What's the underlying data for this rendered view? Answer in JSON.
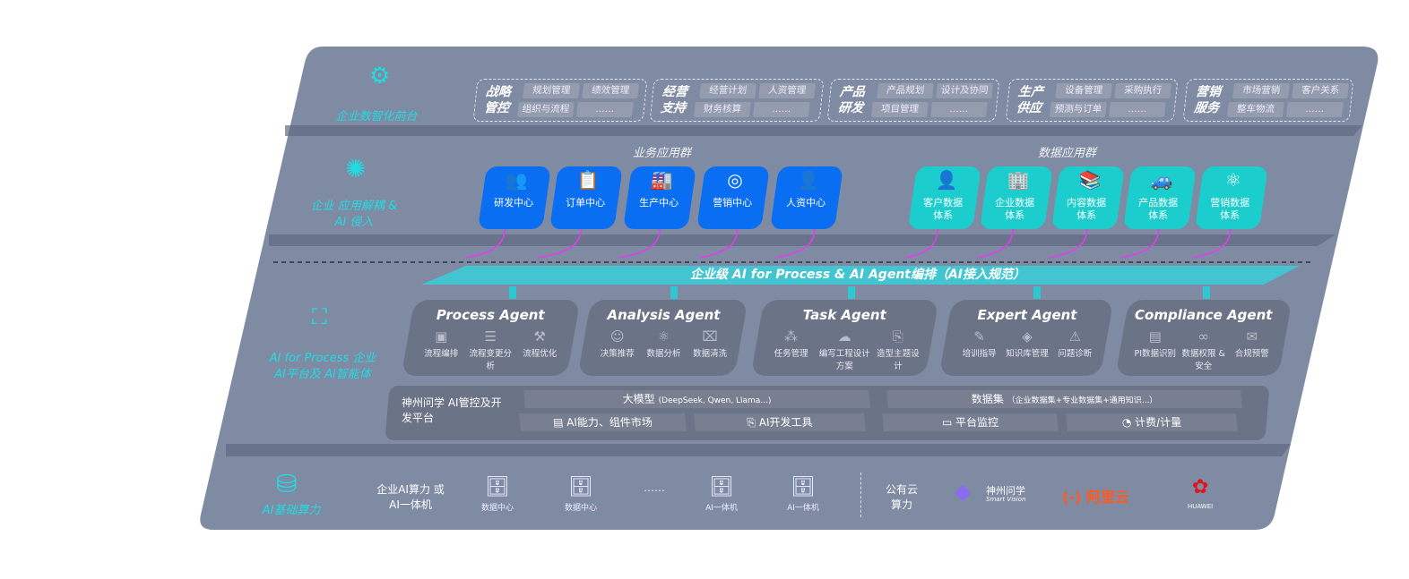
{
  "layers": {
    "frontend": {
      "label": "企业数智化前台",
      "groups": [
        {
          "title": "战略管控",
          "items": [
            "规划管理",
            "绩效管理",
            "组织与流程",
            "……"
          ]
        },
        {
          "title": "经营支持",
          "items": [
            "经营计划",
            "人资管理",
            "财务核算",
            "……"
          ]
        },
        {
          "title": "产品研发",
          "items": [
            "产品规划",
            "设计及协同",
            "项目管理",
            "……"
          ]
        },
        {
          "title": "生产供应",
          "items": [
            "设备管理",
            "采购执行",
            "预测与订单",
            "……"
          ]
        },
        {
          "title": "营销服务",
          "items": [
            "市场营销",
            "客户关系",
            "整车物流",
            "……"
          ]
        }
      ]
    },
    "apps": {
      "label": "企业 应用解耦 & AI 侵入",
      "business_title": "业务应用群",
      "data_title": "数据应用群",
      "business": [
        {
          "label": "研发中心",
          "icon": "people-icon"
        },
        {
          "label": "订单中心",
          "icon": "clipboard-icon"
        },
        {
          "label": "生产中心",
          "icon": "factory-icon"
        },
        {
          "label": "营销中心",
          "icon": "target-icon"
        },
        {
          "label": "人资中心",
          "icon": "person-icon"
        }
      ],
      "data": [
        {
          "label": "客户数据体系",
          "icon": "user-icon"
        },
        {
          "label": "企业数据体系",
          "icon": "building-icon"
        },
        {
          "label": "内容数据体系",
          "icon": "books-icon"
        },
        {
          "label": "产品数据体系",
          "icon": "car-icon"
        },
        {
          "label": "营销数据体系",
          "icon": "atom-icon"
        }
      ]
    },
    "ai": {
      "label": "AI for Process 企业AI平台及 AI智能体",
      "banner": "企业级 AI for Process & AI Agent编排（AI接入规范）",
      "agents": [
        {
          "title": "Process Agent",
          "items": [
            "流程编排",
            "流程变更分析",
            "流程优化"
          ]
        },
        {
          "title": "Analysis Agent",
          "items": [
            "决策推荐",
            "数据分析",
            "数据清洗"
          ]
        },
        {
          "title": "Task Agent",
          "items": [
            "任务管理",
            "编写工程设计方案",
            "造型主题设计"
          ]
        },
        {
          "title": "Expert Agent",
          "items": [
            "培训指导",
            "知识库管理",
            "问题诊断"
          ]
        },
        {
          "title": "Compliance Agent",
          "items": [
            "PI数据识别",
            "数据权限 & 安全",
            "合规预警"
          ]
        }
      ],
      "platform": {
        "name": "神州问学 AI管控及开发平台",
        "model": "大模型",
        "model_note": "(DeepSeek, Qwen, Llama...)",
        "dataset": "数据集",
        "dataset_note": "（企业数据集+专业数据集+通用知识...）",
        "tools": [
          "AI能力、组件市场",
          "AI开发工具",
          "平台监控",
          "计费/计量"
        ]
      }
    },
    "infra": {
      "label": "AI基础算力",
      "enterprise": "企业AI算力 或AI一体机",
      "nodes": [
        "数据中心",
        "数据中心",
        "……",
        "AI一体机",
        "AI一体机"
      ],
      "public": "公有云 算力",
      "vendors": {
        "shenzhou": "神州问学",
        "shenzhou_sub": "Smart Vision",
        "aliyun": "(-) 阿里云",
        "huawei": "HUAWEI"
      }
    }
  },
  "colors": {
    "slab": "#7f8aa3",
    "accent": "#22dce4",
    "blue": "#0a6ef2",
    "teal": "#1ccdcd",
    "arrow": "#e040e8"
  }
}
